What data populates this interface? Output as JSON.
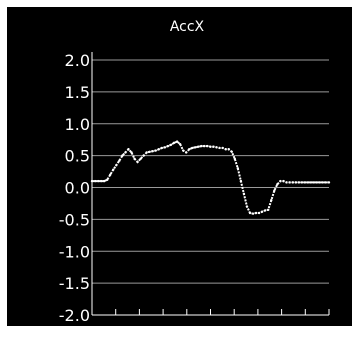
{
  "chart_data": {
    "type": "line",
    "title": "AccX",
    "xlabel": "",
    "ylabel": "",
    "ylim": [
      -2.0,
      2.0
    ],
    "yticks": [
      "2.0",
      "1.5",
      "1.0",
      "0.5",
      "0.0",
      "-0.5",
      "-1.0",
      "-1.5",
      "-2.0"
    ],
    "grid": true,
    "background": "#000000",
    "line_color": "#ffffff",
    "grid_color": "#9a9a9a",
    "x": [
      0,
      3,
      6,
      9,
      12,
      15,
      18,
      21,
      24,
      27,
      30,
      33,
      36,
      39,
      42,
      45,
      48,
      51,
      54,
      57,
      60,
      63,
      66,
      69,
      72,
      75,
      78,
      81,
      84,
      87,
      90,
      93,
      96,
      99,
      102,
      105,
      108,
      111,
      114,
      117,
      120,
      123,
      126,
      129,
      132,
      135,
      138,
      141,
      144,
      147,
      150,
      153,
      156,
      159,
      162,
      165,
      168,
      171,
      174,
      177,
      180,
      183,
      186,
      189,
      192,
      195,
      198,
      201,
      204,
      207,
      210,
      213,
      216,
      219,
      222,
      225,
      228,
      231,
      234
    ],
    "series": [
      {
        "values": [
          0.1,
          0.1,
          0.1,
          0.1,
          0.1,
          0.12,
          0.2,
          0.28,
          0.35,
          0.42,
          0.5,
          0.55,
          0.6,
          0.55,
          0.45,
          0.4,
          0.45,
          0.5,
          0.55,
          0.56,
          0.57,
          0.58,
          0.6,
          0.62,
          0.63,
          0.65,
          0.67,
          0.7,
          0.72,
          0.68,
          0.58,
          0.55,
          0.6,
          0.62,
          0.63,
          0.64,
          0.65,
          0.65,
          0.65,
          0.64,
          0.64,
          0.63,
          0.62,
          0.62,
          0.6,
          0.6,
          0.56,
          0.45,
          0.3,
          0.1,
          -0.1,
          -0.3,
          -0.4,
          -0.41,
          -0.4,
          -0.4,
          -0.38,
          -0.36,
          -0.35,
          -0.2,
          -0.05,
          0.05,
          0.1,
          0.1,
          0.08,
          0.08,
          0.08,
          0.08,
          0.08,
          0.08,
          0.08,
          0.08,
          0.08,
          0.08,
          0.08,
          0.08,
          0.08,
          0.08,
          0.08
        ]
      }
    ],
    "xtick_count": 10
  }
}
